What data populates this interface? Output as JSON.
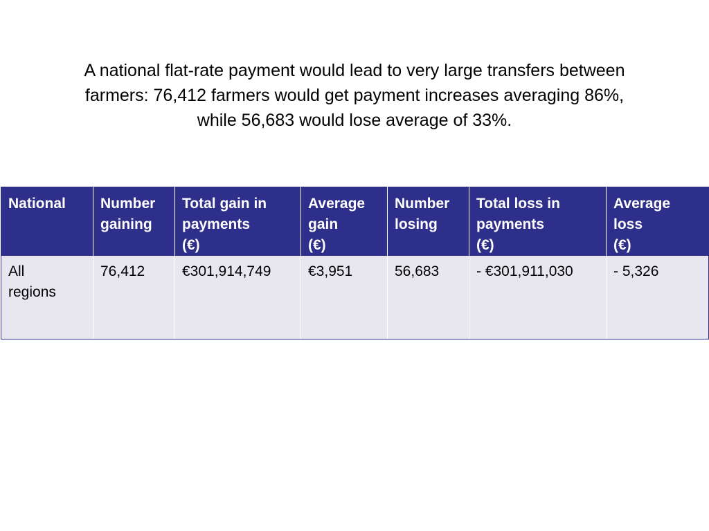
{
  "title": {
    "lines": [
      "A national flat-rate payment would lead to very large transfers between",
      "farmers: 76,412 farmers would get payment increases averaging 86%,",
      "while 56,683 would lose average of 33%."
    ]
  },
  "table": {
    "headers": [
      [
        "National"
      ],
      [
        "Number",
        "gaining"
      ],
      [
        "Total gain in",
        "payments",
        "(€)"
      ],
      [
        "Average",
        "gain",
        "(€)"
      ],
      [
        "Number",
        "losing"
      ],
      [
        "Total loss in",
        "payments",
        "(€)"
      ],
      [
        "Average",
        "loss",
        "(€)"
      ]
    ],
    "rows": [
      [
        [
          "All",
          "regions"
        ],
        [
          "76,412"
        ],
        [
          "€301,914,749"
        ],
        [
          "€3,951"
        ],
        [
          "56,683"
        ],
        [
          "- €301,911,030"
        ],
        [
          "- 5,326"
        ]
      ]
    ]
  },
  "colors": {
    "header_background": "#2e2e8b",
    "row_background": "#e8e7ef"
  }
}
